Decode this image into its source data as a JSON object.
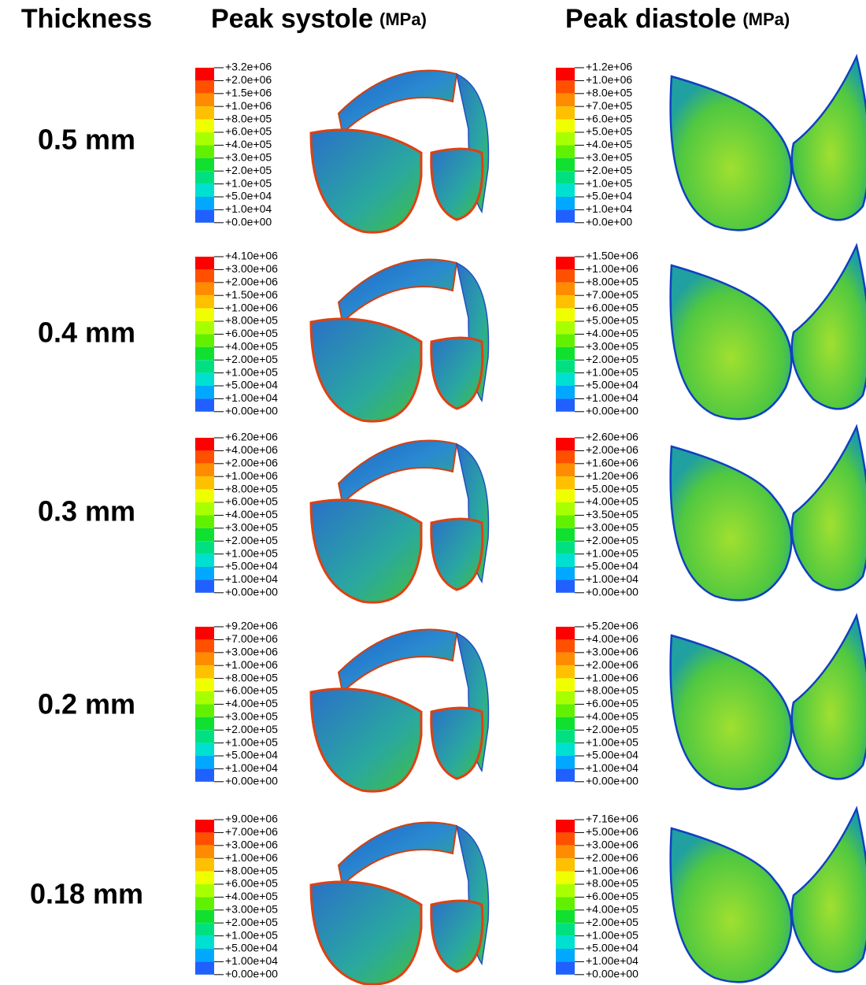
{
  "header": {
    "thickness": "Thickness",
    "systole": {
      "title": "Peak systole",
      "unit": "(MPa)"
    },
    "diastole": {
      "title": "Peak diastole",
      "unit": "(MPa)"
    }
  },
  "rows": [
    {
      "thickness": "0.5 mm",
      "systole_legend": [
        "+3.2e+06",
        "+2.0e+06",
        "+1.5e+06",
        "+1.0e+06",
        "+8.0e+05",
        "+6.0e+05",
        "+4.0e+05",
        "+3.0e+05",
        "+2.0e+05",
        "+1.0e+05",
        "+5.0e+04",
        "+1.0e+04",
        "+0.0e+00"
      ],
      "diastole_legend": [
        "+1.2e+06",
        "+1.0e+06",
        "+8.0e+05",
        "+7.0e+05",
        "+6.0e+05",
        "+5.0e+05",
        "+4.0e+05",
        "+3.0e+05",
        "+2.0e+05",
        "+1.0e+05",
        "+5.0e+04",
        "+1.0e+04",
        "+0.0e+00"
      ]
    },
    {
      "thickness": "0.4 mm",
      "systole_legend": [
        "+4.10e+06",
        "+3.00e+06",
        "+2.00e+06",
        "+1.50e+06",
        "+1.00e+06",
        "+8.00e+05",
        "+6.00e+05",
        "+4.00e+05",
        "+2.00e+05",
        "+1.00e+05",
        "+5.00e+04",
        "+1.00e+04",
        "+0.00e+00"
      ],
      "diastole_legend": [
        "+1.50e+06",
        "+1.00e+06",
        "+8.00e+05",
        "+7.00e+05",
        "+6.00e+05",
        "+5.00e+05",
        "+4.00e+05",
        "+3.00e+05",
        "+2.00e+05",
        "+1.00e+05",
        "+5.00e+04",
        "+1.00e+04",
        "+0.00e+00"
      ]
    },
    {
      "thickness": "0.3 mm",
      "systole_legend": [
        "+6.20e+06",
        "+4.00e+06",
        "+2.00e+06",
        "+1.00e+06",
        "+8.00e+05",
        "+6.00e+05",
        "+4.00e+05",
        "+3.00e+05",
        "+2.00e+05",
        "+1.00e+05",
        "+5.00e+04",
        "+1.00e+04",
        "+0.00e+00"
      ],
      "diastole_legend": [
        "+2.60e+06",
        "+2.00e+06",
        "+1.60e+06",
        "+1.20e+06",
        "+5.00e+05",
        "+4.00e+05",
        "+3.50e+05",
        "+3.00e+05",
        "+2.00e+05",
        "+1.00e+05",
        "+5.00e+04",
        "+1.00e+04",
        "+0.00e+00"
      ]
    },
    {
      "thickness": "0.2 mm",
      "systole_legend": [
        "+9.20e+06",
        "+7.00e+06",
        "+3.00e+06",
        "+1.00e+06",
        "+8.00e+05",
        "+6.00e+05",
        "+4.00e+05",
        "+3.00e+05",
        "+2.00e+05",
        "+1.00e+05",
        "+5.00e+04",
        "+1.00e+04",
        "+0.00e+00"
      ],
      "diastole_legend": [
        "+5.20e+06",
        "+4.00e+06",
        "+3.00e+06",
        "+2.00e+06",
        "+1.00e+06",
        "+8.00e+05",
        "+6.00e+05",
        "+4.00e+05",
        "+2.00e+05",
        "+1.00e+05",
        "+5.00e+04",
        "+1.00e+04",
        "+0.00e+00"
      ]
    },
    {
      "thickness": "0.18 mm",
      "systole_legend": [
        "+9.00e+06",
        "+7.00e+06",
        "+3.00e+06",
        "+1.00e+06",
        "+8.00e+05",
        "+6.00e+05",
        "+4.00e+05",
        "+3.00e+05",
        "+2.00e+05",
        "+1.00e+05",
        "+5.00e+04",
        "+1.00e+04",
        "+0.00e+00"
      ],
      "diastole_legend": [
        "+7.16e+06",
        "+5.00e+06",
        "+3.00e+06",
        "+2.00e+06",
        "+1.00e+06",
        "+8.00e+05",
        "+6.00e+05",
        "+4.00e+05",
        "+2.00e+05",
        "+1.00e+05",
        "+5.00e+04",
        "+1.00e+04",
        "+0.00e+00"
      ]
    }
  ]
}
